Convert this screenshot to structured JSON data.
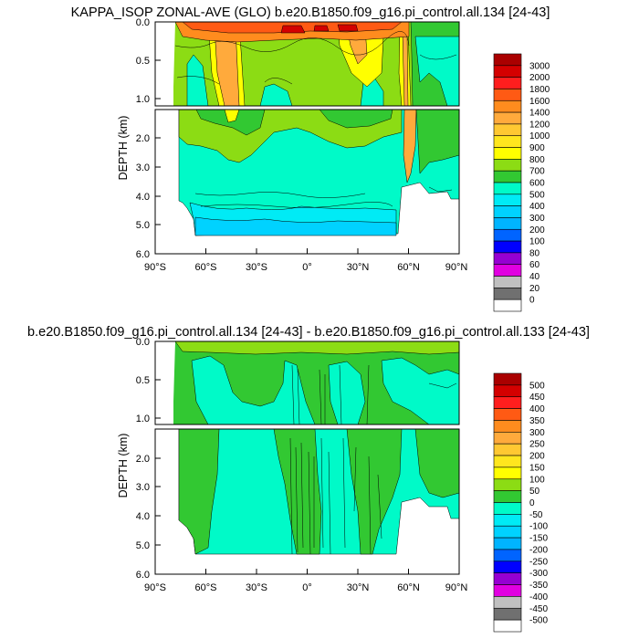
{
  "chart_data": [
    {
      "type": "contour",
      "title": "KAPPA_ISOP ZONAL-AVE (GLO) b.e20.B1850.f09_g16.pi_control.all.134 [24-43]",
      "xlabel": "",
      "ylabel": "DEPTH (km)",
      "x_ticks": [
        "90°S",
        "60°S",
        "30°S",
        "0°",
        "30°N",
        "60°N",
        "90°N"
      ],
      "x_range": [
        -90,
        90
      ],
      "y_ticks_top": [
        "0.0",
        "0.5",
        "1.0"
      ],
      "y_ticks_bottom": [
        "2.0",
        "3.0",
        "4.0",
        "5.0",
        "6.0"
      ],
      "y_range": [
        0,
        6
      ],
      "colorbar_levels": [
        "3000",
        "2000",
        "1800",
        "1600",
        "1400",
        "1200",
        "1000",
        "900",
        "800",
        "700",
        "600",
        "500",
        "400",
        "300",
        "200",
        "100",
        "80",
        "60",
        "40",
        "20",
        "0"
      ],
      "colorbar_colors": [
        "#aa0000",
        "#d40000",
        "#ff1e1e",
        "#ff5a14",
        "#ff8c1e",
        "#ffaa3c",
        "#ffc832",
        "#ffe61e",
        "#ffff00",
        "#8cdc14",
        "#32c832",
        "#00fac8",
        "#00ebf5",
        "#00d2ff",
        "#00b4ff",
        "#0064ff",
        "#0000ff",
        "#9600d2",
        "#e100e1",
        "#c0c0c0",
        "#707070",
        "#ffffff"
      ]
    },
    {
      "type": "contour",
      "title": "b.e20.B1850.f09_g16.pi_control.all.134 [24-43] - b.e20.B1850.f09_g16.pi_control.all.133 [24-43]",
      "xlabel": "",
      "ylabel": "DEPTH (km)",
      "x_ticks": [
        "90°S",
        "60°S",
        "30°S",
        "0°",
        "30°N",
        "60°N",
        "90°N"
      ],
      "x_range": [
        -90,
        90
      ],
      "y_ticks_top": [
        "0.0",
        "0.5",
        "1.0"
      ],
      "y_ticks_bottom": [
        "2.0",
        "3.0",
        "4.0",
        "5.0",
        "6.0"
      ],
      "y_range": [
        0,
        6
      ],
      "colorbar_levels": [
        "500",
        "450",
        "400",
        "350",
        "300",
        "250",
        "200",
        "150",
        "100",
        "50",
        "0",
        "-50",
        "-100",
        "-150",
        "-200",
        "-250",
        "-300",
        "-350",
        "-400",
        "-450",
        "-500"
      ],
      "colorbar_colors": [
        "#aa0000",
        "#d40000",
        "#ff1e1e",
        "#ff5a14",
        "#ff8c1e",
        "#ffaa3c",
        "#ffc832",
        "#ffe61e",
        "#ffff00",
        "#8cdc14",
        "#32c832",
        "#00fac8",
        "#00ebf5",
        "#00d2ff",
        "#00b4ff",
        "#0064ff",
        "#0000ff",
        "#9600d2",
        "#e100e1",
        "#c0c0c0",
        "#707070",
        "#ffffff"
      ]
    }
  ]
}
